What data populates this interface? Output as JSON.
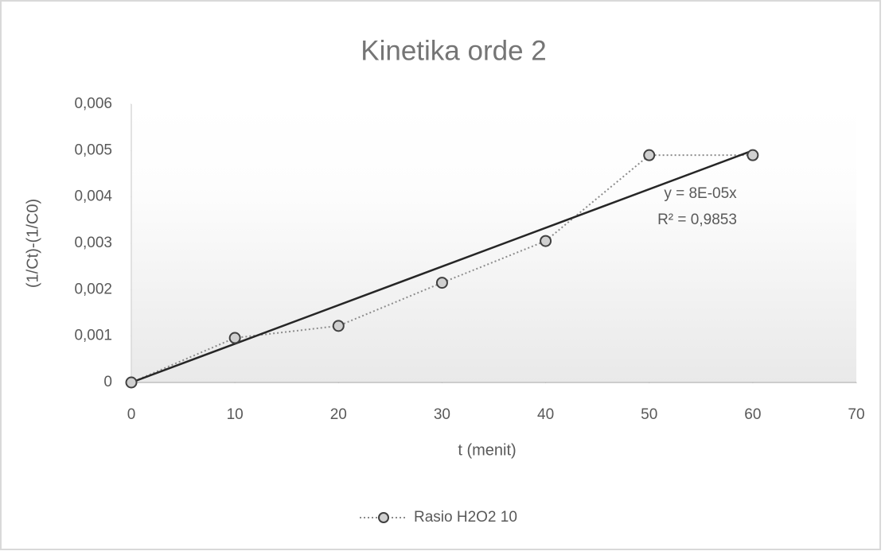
{
  "chart_data": {
    "type": "line",
    "title": "Kinetika orde 2",
    "x_label": "t (menit)",
    "y_label": "(1/Ct)-(1/C0)",
    "x": [
      0,
      10,
      20,
      30,
      40,
      50,
      60
    ],
    "series": [
      {
        "name": "Rasio H2O2 10",
        "color": "#d0d0d0",
        "values": [
          0,
          0.00096,
          0.00122,
          0.00215,
          0.00305,
          0.0049,
          0.0049
        ]
      }
    ],
    "trendline": {
      "x": [
        0,
        60
      ],
      "values": [
        0,
        0.005
      ],
      "color": "#262626"
    },
    "annotations": [
      "y = 8E-05x",
      "R² = 0,9853"
    ],
    "xlim": [
      0,
      70
    ],
    "xticks": [
      0,
      10,
      20,
      30,
      40,
      50,
      60,
      70
    ],
    "ylim": [
      0,
      0.006
    ],
    "yticks": [
      0,
      {
        "value": 0.001,
        "label": "0,001"
      },
      {
        "value": 0.002,
        "label": "0,002"
      },
      {
        "value": 0.003,
        "label": "0,003"
      },
      {
        "value": 0.004,
        "label": "0,004"
      },
      {
        "value": 0.005,
        "label": "0,005"
      },
      {
        "value": 0.006,
        "label": "0,006"
      }
    ],
    "legend": "bottom"
  }
}
